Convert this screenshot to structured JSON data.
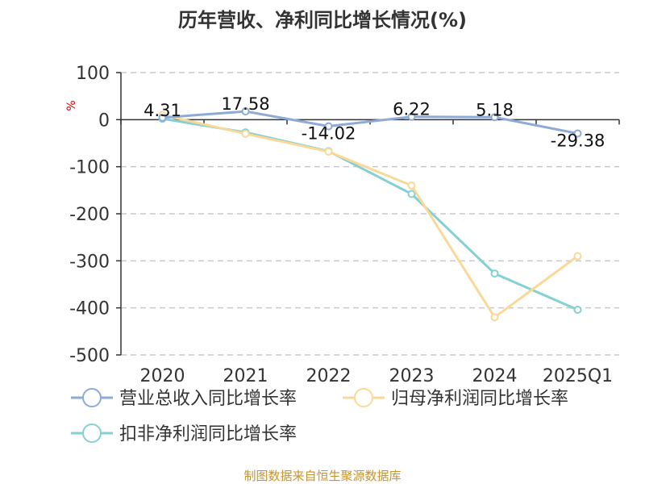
{
  "chart_data": {
    "type": "line",
    "title": "历年营收、净利同比增长情况(%)",
    "ylabel": "%",
    "xlabel": "",
    "categories": [
      "2020",
      "2021",
      "2022",
      "2023",
      "2024",
      "2025Q1"
    ],
    "ylim": [
      -500,
      100
    ],
    "yticks": [
      100,
      0,
      -100,
      -200,
      -300,
      -400,
      -500
    ],
    "grid": true,
    "legend_position": "bottom",
    "series": [
      {
        "name": "营业总收入同比增长率",
        "color": "#8eaad6",
        "values": [
          4.31,
          17.58,
          -14.02,
          6.22,
          5.18,
          -29.38
        ],
        "data_labels": [
          "4.31",
          "17.58",
          "-14.02",
          "6.22",
          "5.18",
          "-29.38"
        ]
      },
      {
        "name": "归母净利润同比增长率",
        "color": "#fad998",
        "values": [
          10,
          -30,
          -68,
          -140,
          -420,
          -290
        ]
      },
      {
        "name": "扣非净利润同比增长率",
        "color": "#84d0d3",
        "values": [
          2,
          -27,
          -67,
          -158,
          -327,
          -404
        ]
      }
    ],
    "source": "制图数据来自恒生聚源数据库"
  }
}
